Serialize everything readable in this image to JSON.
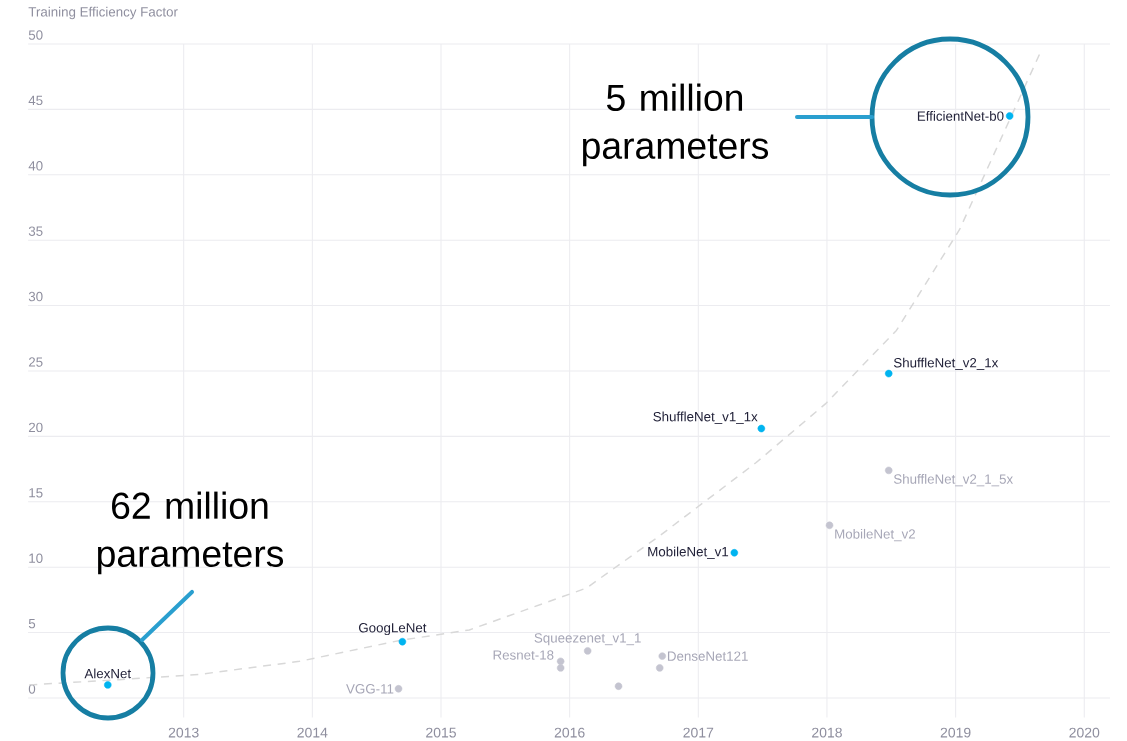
{
  "chart_data": {
    "type": "scatter",
    "ylabel": "Training Efficiency Factor",
    "xlim": [
      2011.79,
      2020.2
    ],
    "ylim": [
      -1.5,
      50
    ],
    "xticks": [
      2013,
      2014,
      2015,
      2016,
      2017,
      2018,
      2019,
      2020
    ],
    "yticks": [
      0,
      5,
      10,
      15,
      20,
      25,
      30,
      35,
      40,
      45,
      50
    ],
    "grid": true,
    "marker": "circle",
    "series": [
      {
        "color": "#00b4f0",
        "x": [
          2012.41,
          2014.7,
          2017.28,
          2017.49,
          2018.48,
          2019.42
        ],
        "values": [
          1.0,
          4.3,
          11.1,
          20.6,
          24.8,
          44.5
        ],
        "value_labels": [
          "AlexNet",
          "GoogLeNet",
          "MobileNet_v1",
          "ShuffleNet_v1_1x",
          "ShuffleNet_v2_1x",
          "EfficientNet-b0"
        ]
      },
      {
        "color": "#c4c4d0",
        "x": [
          2014.67,
          2015.93,
          2015.93,
          2016.14,
          2016.38,
          2016.72,
          2016.7,
          2018.02,
          2018.48
        ],
        "values": [
          0.7,
          2.8,
          2.3,
          3.6,
          0.9,
          3.2,
          2.3,
          13.2,
          17.4
        ],
        "value_labels": [
          "VGG-11",
          "Resnet-18",
          null,
          "Squeezenet_v1_1",
          null,
          "DenseNet121",
          null,
          "MobileNet_v2",
          "ShuffleNet_v2_1_5x"
        ]
      },
      {
        "type": "line",
        "color": "#d8d8d8",
        "line_style": "dashed",
        "marker": "none",
        "x": [
          2011.8,
          2012.5,
          2013.12,
          2013.9,
          2014.68,
          2015.22,
          2016.13,
          2016.7,
          2017.45,
          2017.99,
          2018.54,
          2019.03,
          2019.67
        ],
        "values": [
          1.0,
          1.4,
          1.8,
          2.8,
          4.4,
          5.2,
          8.4,
          12.4,
          18.0,
          22.5,
          28.1,
          35.8,
          49.6
        ]
      }
    ],
    "annotations": [
      "5 million parameters",
      "62 million parameters"
    ]
  }
}
